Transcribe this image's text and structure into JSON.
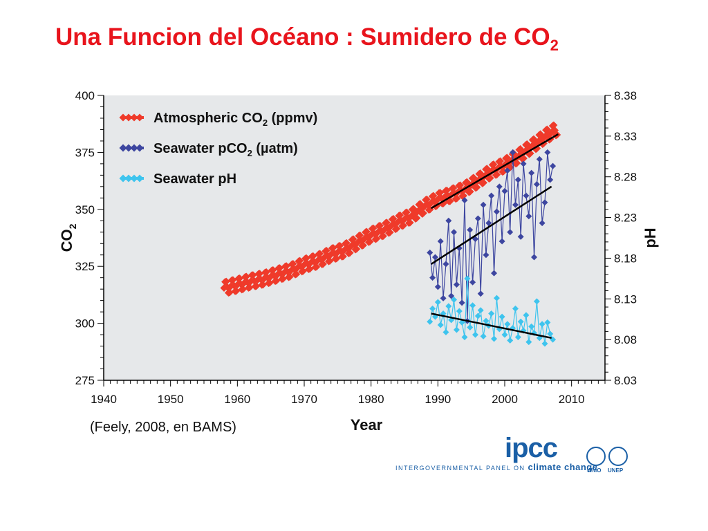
{
  "slide": {
    "title_main": "Una Funcion del Océano : Sumidero de CO",
    "title_sub": "2",
    "citation": "(Feely, 2008, en BAMS)"
  },
  "logo": {
    "word": "ipcc",
    "tagline_small": "INTERGOVERNMENTAL PANEL ON",
    "tagline_big": "climate change",
    "emblem_left": "WMO",
    "emblem_right": "UNEP"
  },
  "colors": {
    "title": "#e8141c",
    "plot_bg": "#e6e8ea",
    "atmospheric": "#ef3a2a",
    "seawater_pco2": "#3d46a0",
    "seawater_ph": "#3ec4ee",
    "trend": "#000000",
    "logo_blue": "#1a5fa6"
  },
  "chart_data": {
    "type": "line",
    "xlabel": "Year",
    "ylabel_left": "CO",
    "ylabel_left_sub": "2",
    "ylabel_right": "pH",
    "xlim": [
      1940,
      2015
    ],
    "ylim_left": [
      275,
      400
    ],
    "ylim_right": [
      8.03,
      8.38
    ],
    "x_ticks": [
      "1940",
      "1950",
      "1960",
      "1970",
      "1980",
      "1990",
      "2000",
      "2010"
    ],
    "y_ticks_left": [
      "275",
      "300",
      "325",
      "350",
      "375",
      "400"
    ],
    "y_ticks_right": [
      "8.03",
      "8.08",
      "8.13",
      "8.18",
      "8.23",
      "8.28",
      "8.33",
      "8.38"
    ],
    "legend_position": "top-left",
    "grid": false,
    "series": [
      {
        "name_main": "Atmospheric CO",
        "name_sub": "2",
        "name_end": " (ppmv)",
        "axis": "left",
        "color_key": "atmospheric",
        "x": [
          1958,
          1960,
          1962,
          1964,
          1966,
          1968,
          1970,
          1972,
          1974,
          1976,
          1978,
          1980,
          1982,
          1984,
          1986,
          1988,
          1990,
          1992,
          1994,
          1996,
          1998,
          2000,
          2002,
          2004,
          2006,
          2008
        ],
        "y": [
          315.5,
          316.9,
          318.4,
          319.6,
          321.4,
          323.1,
          325.7,
          327.5,
          330.2,
          332.1,
          335.5,
          338.7,
          341.1,
          344.4,
          347.0,
          351.3,
          354.4,
          356.4,
          358.8,
          362.6,
          366.7,
          369.5,
          373.2,
          377.5,
          381.9,
          385.6
        ],
        "seasonal_amplitude": 3
      },
      {
        "name_main": "Seawater pCO",
        "name_sub": "2",
        "name_end": " (µatm)",
        "axis": "left",
        "color_key": "seawater_pco2",
        "x": [
          1988.8,
          1989.2,
          1989.6,
          1990.0,
          1990.4,
          1990.8,
          1991.2,
          1991.6,
          1992.0,
          1992.4,
          1992.8,
          1993.2,
          1993.6,
          1994.0,
          1994.4,
          1994.8,
          1995.2,
          1995.6,
          1996.0,
          1996.4,
          1996.8,
          1997.2,
          1997.6,
          1998.0,
          1998.4,
          1998.8,
          1999.2,
          1999.6,
          2000.0,
          2000.4,
          2000.8,
          2001.2,
          2001.6,
          2002.0,
          2002.4,
          2002.8,
          2003.2,
          2003.6,
          2004.0,
          2004.4,
          2004.8,
          2005.2,
          2005.6,
          2006.0,
          2006.4,
          2006.8,
          2007.2
        ],
        "y": [
          331,
          320,
          329,
          316,
          336,
          311,
          326,
          345,
          312,
          340,
          317,
          333,
          309,
          354,
          301,
          341,
          318,
          337,
          346,
          313,
          352,
          330,
          344,
          356,
          322,
          349,
          360,
          336,
          358,
          367,
          340,
          375,
          352,
          363,
          338,
          370,
          356,
          347,
          366,
          329,
          361,
          372,
          344,
          353,
          375,
          363,
          369
        ],
        "trend": {
          "x": [
            1989,
            2007
          ],
          "y": [
            326,
            360
          ]
        }
      },
      {
        "name_main": "Seawater pH",
        "name_sub": "",
        "name_end": "",
        "axis": "right",
        "color_key": "seawater_ph",
        "x": [
          1988.8,
          1989.2,
          1989.6,
          1990.0,
          1990.4,
          1990.8,
          1991.2,
          1991.6,
          1992.0,
          1992.4,
          1992.8,
          1993.2,
          1993.6,
          1994.0,
          1994.4,
          1994.8,
          1995.2,
          1995.6,
          1996.0,
          1996.4,
          1996.8,
          1997.2,
          1997.6,
          1998.0,
          1998.4,
          1998.8,
          1999.2,
          1999.6,
          2000.0,
          2000.4,
          2000.8,
          2001.2,
          2001.6,
          2002.0,
          2002.4,
          2002.8,
          2003.2,
          2003.6,
          2004.0,
          2004.4,
          2004.8,
          2005.2,
          2005.6,
          2006.0,
          2006.4,
          2006.8,
          2007.2
        ],
        "y": [
          8.102,
          8.118,
          8.108,
          8.126,
          8.098,
          8.112,
          8.089,
          8.121,
          8.104,
          8.129,
          8.092,
          8.115,
          8.101,
          8.083,
          8.155,
          8.095,
          8.122,
          8.086,
          8.109,
          8.116,
          8.084,
          8.103,
          8.097,
          8.112,
          8.081,
          8.131,
          8.093,
          8.108,
          8.086,
          8.099,
          8.079,
          8.094,
          8.118,
          8.083,
          8.102,
          8.091,
          8.11,
          8.077,
          8.096,
          8.088,
          8.127,
          8.082,
          8.099,
          8.075,
          8.101,
          8.087,
          8.08
        ],
        "trend": {
          "x": [
            1989,
            2007
          ],
          "y": [
            8.112,
            8.082
          ]
        }
      }
    ],
    "atmospheric_trend": {
      "x": [
        1989,
        2008
      ],
      "y": [
        350.5,
        383
      ]
    }
  }
}
